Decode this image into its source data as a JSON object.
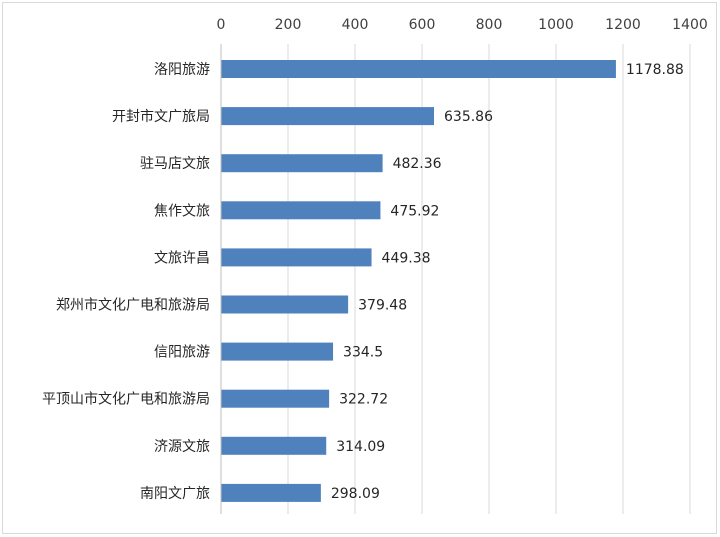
{
  "chart_data": {
    "type": "bar",
    "orientation": "horizontal",
    "categories": [
      "洛阳旅游",
      "开封市文广旅局",
      "驻马店文旅",
      "焦作文旅",
      "文旅许昌",
      "郑州市文化广电和旅游局",
      "信阳旅游",
      "平顶山市文化广电和旅游局",
      "济源文旅",
      "南阳文广旅"
    ],
    "values": [
      1178.88,
      635.86,
      482.36,
      475.92,
      449.38,
      379.48,
      334.5,
      322.72,
      314.09,
      298.09
    ],
    "value_labels": [
      "1178.88",
      "635.86",
      "482.36",
      "475.92",
      "449.38",
      "379.48",
      "334.5",
      "322.72",
      "314.09",
      "298.09"
    ],
    "xlim": [
      0,
      1400
    ],
    "x_ticks": [
      "0",
      "200",
      "400",
      "600",
      "800",
      "1000",
      "1200",
      "1400"
    ],
    "x_axis_position": "top",
    "grid": true,
    "legend": "none",
    "bar_color": "#4f81bd",
    "grid_color": "#d9d9d9"
  }
}
